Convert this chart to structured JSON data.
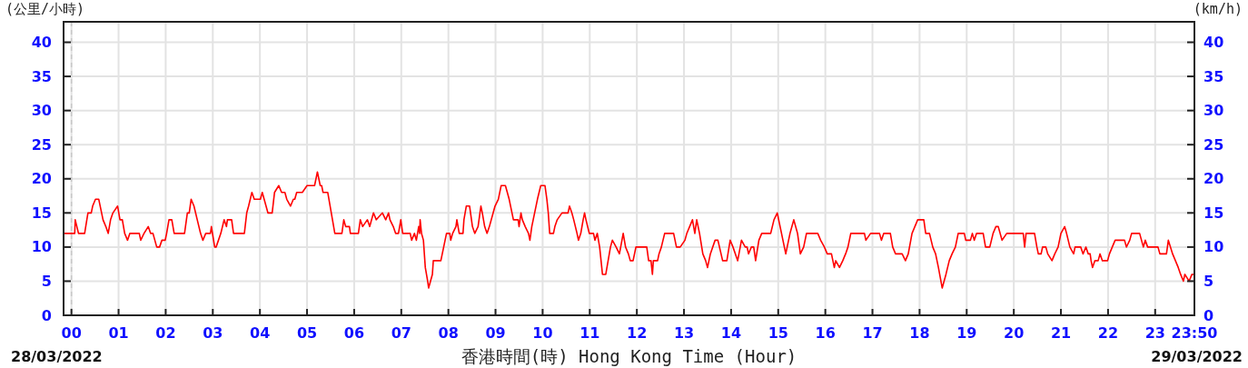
{
  "chart_data": {
    "type": "line",
    "xlabel": "香港時間(時) Hong Kong Time (Hour)",
    "ylabel": "(公里/小時)",
    "y2label": "(km/h)",
    "annotations": [
      "28/03/2022",
      "29/03/2022"
    ],
    "x": [
      -0.167,
      0.07,
      0.08,
      0.15,
      0.28,
      0.35,
      0.42,
      0.45,
      0.51,
      0.58,
      0.61,
      0.67,
      0.73,
      0.78,
      0.83,
      0.88,
      0.98,
      1.03,
      1.08,
      1.13,
      1.19,
      1.24,
      1.44,
      1.47,
      1.54,
      1.63,
      1.68,
      1.73,
      1.81,
      1.87,
      1.92,
      1.99,
      2.02,
      2.07,
      2.13,
      2.18,
      2.4,
      2.46,
      2.5,
      2.54,
      2.6,
      2.67,
      2.74,
      2.79,
      2.85,
      2.95,
      2.97,
      3.04,
      3.07,
      3.12,
      3.17,
      3.24,
      3.29,
      3.31,
      3.4,
      3.44,
      3.67,
      3.72,
      3.76,
      3.83,
      3.88,
      4.01,
      4.05,
      4.09,
      4.17,
      4.26,
      4.31,
      4.4,
      4.46,
      4.53,
      4.57,
      4.65,
      4.71,
      4.74,
      4.78,
      4.9,
      5.0,
      5.16,
      5.22,
      5.28,
      5.31,
      5.34,
      5.44,
      5.49,
      5.54,
      5.59,
      5.74,
      5.78,
      5.82,
      5.9,
      5.92,
      6.09,
      6.13,
      6.18,
      6.28,
      6.33,
      6.41,
      6.47,
      6.6,
      6.67,
      6.73,
      6.76,
      6.83,
      6.88,
      6.94,
      6.99,
      7.03,
      7.19,
      7.22,
      7.28,
      7.32,
      7.37,
      7.39,
      7.4,
      7.43,
      7.47,
      7.51,
      7.56,
      7.58,
      7.62,
      7.66,
      7.68,
      7.84,
      7.87,
      7.9,
      7.93,
      7.96,
      8.03,
      8.05,
      8.09,
      8.16,
      8.18,
      8.23,
      8.31,
      8.33,
      8.38,
      8.45,
      8.51,
      8.56,
      8.63,
      8.69,
      8.72,
      8.77,
      8.82,
      8.87,
      8.95,
      8.99,
      9.06,
      9.12,
      9.21,
      9.25,
      9.29,
      9.35,
      9.38,
      9.48,
      9.5,
      9.54,
      9.57,
      9.63,
      9.7,
      9.73,
      9.77,
      9.8,
      9.83,
      9.89,
      9.96,
      10.05,
      10.09,
      10.12,
      10.15,
      10.23,
      10.26,
      10.31,
      10.41,
      10.54,
      10.57,
      10.62,
      10.66,
      10.73,
      10.76,
      10.81,
      10.86,
      10.89,
      10.92,
      10.99,
      11.08,
      11.11,
      11.16,
      11.21,
      11.24,
      11.27,
      11.34,
      11.39,
      11.44,
      11.48,
      11.56,
      11.63,
      11.71,
      11.76,
      11.82,
      11.86,
      11.92,
      11.98,
      12.21,
      12.25,
      12.3,
      12.33,
      12.35,
      12.44,
      12.47,
      12.52,
      12.59,
      12.78,
      12.84,
      12.92,
      13.02,
      13.06,
      13.18,
      13.23,
      13.27,
      13.33,
      13.4,
      13.46,
      13.5,
      13.56,
      13.66,
      13.72,
      13.82,
      13.91,
      13.98,
      14.04,
      14.14,
      14.22,
      14.3,
      14.34,
      14.37,
      14.43,
      14.48,
      14.52,
      14.59,
      14.65,
      14.84,
      14.91,
      14.98,
      15.07,
      15.1,
      15.16,
      15.19,
      15.25,
      15.33,
      15.41,
      15.47,
      15.54,
      15.6,
      15.7,
      15.84,
      15.9,
      15.98,
      16.04,
      16.13,
      16.19,
      16.22,
      16.3,
      16.37,
      16.43,
      16.48,
      16.54,
      16.83,
      16.86,
      16.96,
      17.15,
      17.19,
      17.24,
      17.38,
      17.43,
      17.49,
      17.63,
      17.7,
      17.76,
      17.84,
      17.9,
      17.96,
      18.09,
      18.13,
      18.21,
      18.28,
      18.34,
      18.4,
      18.48,
      18.56,
      18.63,
      18.69,
      18.76,
      18.82,
      18.95,
      18.98,
      19.08,
      19.12,
      19.16,
      19.21,
      19.35,
      19.4,
      19.49,
      19.56,
      19.62,
      19.67,
      19.75,
      19.85,
      20.2,
      20.23,
      20.26,
      20.44,
      20.49,
      20.52,
      20.58,
      20.61,
      20.68,
      20.72,
      20.81,
      20.87,
      20.94,
      21.0,
      21.08,
      21.12,
      21.19,
      21.27,
      21.3,
      21.42,
      21.47,
      21.53,
      21.58,
      21.62,
      21.64,
      21.67,
      21.72,
      21.79,
      21.83,
      21.88,
      21.99,
      22.03,
      22.09,
      22.15,
      22.35,
      22.39,
      22.46,
      22.5,
      22.67,
      22.75,
      22.79,
      22.84,
      23.06,
      23.1,
      23.24,
      23.28,
      23.37,
      23.43,
      23.49,
      23.54,
      23.6,
      23.63,
      23.72,
      23.78,
      23.833
    ],
    "series": [
      {
        "color": "#ff0000",
        "values": [
          12,
          12,
          14,
          12,
          12,
          15,
          15,
          16,
          17,
          17,
          16,
          14,
          13,
          12,
          14,
          15,
          16,
          14,
          14,
          12,
          11,
          12,
          12,
          11,
          12,
          13,
          12,
          12,
          10,
          10,
          11,
          11,
          12,
          14,
          14,
          12,
          12,
          15,
          15,
          17,
          16,
          14,
          12,
          11,
          12,
          12,
          13,
          10,
          10,
          11,
          12,
          14,
          13,
          14,
          14,
          12,
          12,
          15,
          16,
          18,
          17,
          17,
          18,
          17,
          15,
          15,
          18,
          19,
          18,
          18,
          17,
          16,
          17,
          17,
          18,
          18,
          19,
          19,
          21,
          19,
          19,
          18,
          18,
          16,
          14,
          12,
          12,
          14,
          13,
          13,
          12,
          12,
          14,
          13,
          14,
          13,
          15,
          14,
          15,
          14,
          15,
          14,
          13,
          12,
          12,
          14,
          12,
          12,
          11,
          12,
          11,
          13,
          12,
          14,
          12,
          11,
          7,
          5,
          4,
          5,
          6,
          8,
          8,
          9,
          10,
          11,
          12,
          12,
          11,
          12,
          13,
          14,
          12,
          12,
          14,
          16,
          16,
          13,
          12,
          13,
          16,
          15,
          13,
          12,
          13,
          15,
          16,
          17,
          19,
          19,
          18,
          17,
          15,
          14,
          14,
          13,
          15,
          14,
          13,
          12,
          11,
          13,
          14,
          15,
          17,
          19,
          19,
          17,
          15,
          12,
          12,
          13,
          14,
          15,
          15,
          16,
          15,
          14,
          12,
          11,
          12,
          14,
          15,
          14,
          12,
          12,
          11,
          12,
          10,
          8,
          6,
          6,
          8,
          10,
          11,
          10,
          9,
          12,
          10,
          9,
          8,
          8,
          10,
          10,
          8,
          8,
          6,
          8,
          8,
          9,
          10,
          12,
          12,
          10,
          10,
          11,
          12,
          14,
          12,
          14,
          12,
          9,
          8,
          7,
          9,
          11,
          11,
          8,
          8,
          11,
          10,
          8,
          11,
          10,
          10,
          9,
          10,
          10,
          8,
          11,
          12,
          12,
          14,
          15,
          12,
          11,
          9,
          10,
          12,
          14,
          12,
          9,
          10,
          12,
          12,
          12,
          11,
          10,
          9,
          9,
          7,
          8,
          7,
          8,
          9,
          10,
          12,
          12,
          11,
          12,
          12,
          11,
          12,
          12,
          10,
          9,
          9,
          8,
          9,
          12,
          13,
          14,
          14,
          12,
          12,
          10,
          9,
          7,
          4,
          6,
          8,
          9,
          10,
          12,
          12,
          11,
          11,
          12,
          11,
          12,
          12,
          10,
          10,
          12,
          13,
          13,
          11,
          12,
          12,
          10,
          12,
          12,
          10,
          9,
          9,
          10,
          10,
          9,
          8,
          9,
          10,
          12,
          13,
          12,
          10,
          9,
          10,
          10,
          9,
          10,
          9,
          9,
          8,
          7,
          8,
          8,
          9,
          8,
          8,
          9,
          10,
          11,
          11,
          10,
          11,
          12,
          12,
          10,
          11,
          10,
          10,
          9,
          9,
          11,
          9,
          8,
          7,
          6,
          5,
          6,
          5,
          6,
          6
        ]
      }
    ],
    "xlim": [
      -0.167,
      23.833
    ],
    "xticks": [
      {
        "value": 0,
        "label": "00"
      },
      {
        "value": 1,
        "label": "01"
      },
      {
        "value": 2,
        "label": "02"
      },
      {
        "value": 3,
        "label": "03"
      },
      {
        "value": 4,
        "label": "04"
      },
      {
        "value": 5,
        "label": "05"
      },
      {
        "value": 6,
        "label": "06"
      },
      {
        "value": 7,
        "label": "07"
      },
      {
        "value": 8,
        "label": "08"
      },
      {
        "value": 9,
        "label": "09"
      },
      {
        "value": 10,
        "label": "10"
      },
      {
        "value": 11,
        "label": "11"
      },
      {
        "value": 12,
        "label": "12"
      },
      {
        "value": 13,
        "label": "13"
      },
      {
        "value": 14,
        "label": "14"
      },
      {
        "value": 15,
        "label": "15"
      },
      {
        "value": 16,
        "label": "16"
      },
      {
        "value": 17,
        "label": "17"
      },
      {
        "value": 18,
        "label": "18"
      },
      {
        "value": 19,
        "label": "19"
      },
      {
        "value": 20,
        "label": "20"
      },
      {
        "value": 21,
        "label": "21"
      },
      {
        "value": 22,
        "label": "22"
      },
      {
        "value": 23,
        "label": "23"
      },
      {
        "value": 23.833,
        "label": "23:50"
      }
    ],
    "ylim": [
      0,
      43
    ],
    "yticks": [
      0,
      5,
      10,
      15,
      20,
      25,
      30,
      35,
      40
    ],
    "y2lim": [
      0,
      43
    ],
    "y2ticks": [
      0,
      5,
      10,
      15,
      20,
      25,
      30,
      35,
      40
    ],
    "grid": true,
    "ref_lines": [
      {
        "axis": "x",
        "value": 0,
        "color": "#c8c8c8",
        "line_style": "dashed"
      }
    ]
  }
}
